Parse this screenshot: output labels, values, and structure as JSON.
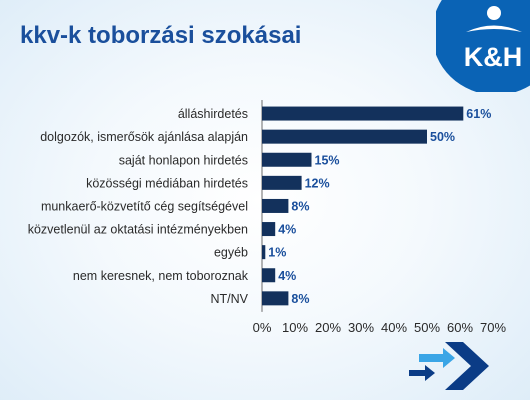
{
  "slide": {
    "title": "kkv-k toborzási szokásai",
    "logo_text": "K&H"
  },
  "colors": {
    "title": "#1a4f9c",
    "bar": "#13315c",
    "value_label": "#1a4f9c",
    "logo_blue": "#0a63b5",
    "arrow_dark": "#0b3c86",
    "arrow_light": "#3aa5e6"
  },
  "icons": [
    "kh-logo",
    "arrow-forward-icon"
  ],
  "chart_data": {
    "type": "bar",
    "orientation": "horizontal",
    "categories": [
      "álláshirdetés",
      "dolgozók, ismerősök ajánlása alapján",
      "saját honlapon hirdetés",
      "közösségi médiában hirdetés",
      "munkaerő-közvetítő cég segítségével",
      "közvetlenül az oktatási intézményekben",
      "egyéb",
      "nem keresnek, nem toboroznak",
      "NT/NV"
    ],
    "values": [
      61,
      50,
      15,
      12,
      8,
      4,
      1,
      4,
      8
    ],
    "value_labels": [
      "61%",
      "50%",
      "15%",
      "12%",
      "8%",
      "4%",
      "1%",
      "4%",
      "8%"
    ],
    "xlim": [
      0,
      70
    ],
    "ticks": [
      0,
      10,
      20,
      30,
      40,
      50,
      60,
      70
    ],
    "tick_labels": [
      "0%",
      "10%",
      "20%",
      "30%",
      "40%",
      "50%",
      "60%",
      "70%"
    ],
    "grid": false,
    "legend": "none"
  }
}
